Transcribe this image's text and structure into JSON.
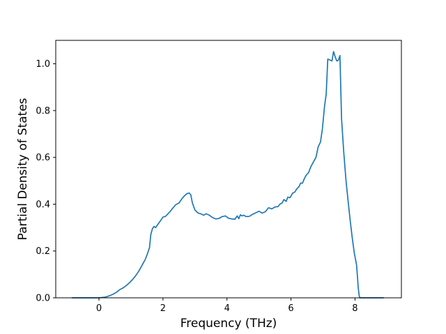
{
  "chart_data": {
    "type": "line",
    "title": "",
    "xlabel": "Frequency (THz)",
    "ylabel": "Partial Density of States",
    "xlim": [
      -1.35,
      9.45
    ],
    "ylim": [
      0.0,
      1.1
    ],
    "x_ticks": [
      0,
      2,
      4,
      6,
      8
    ],
    "x_tick_labels": [
      "0",
      "2",
      "4",
      "6",
      "8"
    ],
    "y_ticks": [
      0.0,
      0.2,
      0.4,
      0.6,
      0.8,
      1.0
    ],
    "y_tick_labels": [
      "0.0",
      "0.2",
      "0.4",
      "0.6",
      "0.8",
      "1.0"
    ],
    "grid": false,
    "legend": "none",
    "series": [
      {
        "color": "#1f77b4",
        "x": [
          -0.85,
          -0.5,
          0.0,
          0.2,
          0.35,
          0.45,
          0.55,
          0.65,
          0.75,
          0.85,
          0.95,
          1.05,
          1.15,
          1.25,
          1.35,
          1.45,
          1.52,
          1.58,
          1.62,
          1.67,
          1.72,
          1.77,
          1.82,
          1.9,
          2.0,
          2.08,
          2.15,
          2.22,
          2.3,
          2.4,
          2.5,
          2.6,
          2.68,
          2.75,
          2.82,
          2.87,
          2.92,
          3.0,
          3.1,
          3.2,
          3.27,
          3.35,
          3.45,
          3.55,
          3.65,
          3.75,
          3.85,
          3.95,
          4.05,
          4.15,
          4.25,
          4.32,
          4.37,
          4.42,
          4.47,
          4.52,
          4.6,
          4.7,
          4.8,
          4.9,
          5.0,
          5.1,
          5.2,
          5.3,
          5.4,
          5.5,
          5.6,
          5.65,
          5.72,
          5.78,
          5.85,
          5.9,
          5.97,
          6.05,
          6.12,
          6.18,
          6.25,
          6.3,
          6.36,
          6.42,
          6.48,
          6.55,
          6.62,
          6.7,
          6.78,
          6.85,
          6.92,
          6.98,
          7.05,
          7.1,
          7.15,
          7.22,
          7.28,
          7.33,
          7.38,
          7.43,
          7.48,
          7.53,
          7.58,
          7.65,
          7.72,
          7.78,
          7.85,
          7.92,
          7.98,
          8.05,
          8.08,
          8.1,
          8.13,
          8.15,
          8.3,
          8.6,
          8.9
        ],
        "y": [
          0.0,
          0.0,
          0.0,
          0.003,
          0.01,
          0.016,
          0.024,
          0.035,
          0.042,
          0.052,
          0.064,
          0.078,
          0.095,
          0.115,
          0.14,
          0.165,
          0.19,
          0.215,
          0.27,
          0.295,
          0.305,
          0.3,
          0.31,
          0.325,
          0.345,
          0.348,
          0.358,
          0.368,
          0.382,
          0.398,
          0.405,
          0.425,
          0.437,
          0.445,
          0.448,
          0.44,
          0.405,
          0.375,
          0.362,
          0.358,
          0.353,
          0.359,
          0.353,
          0.343,
          0.337,
          0.339,
          0.347,
          0.35,
          0.34,
          0.337,
          0.336,
          0.35,
          0.338,
          0.355,
          0.35,
          0.353,
          0.347,
          0.348,
          0.357,
          0.363,
          0.37,
          0.362,
          0.368,
          0.385,
          0.38,
          0.388,
          0.39,
          0.4,
          0.405,
          0.42,
          0.412,
          0.43,
          0.428,
          0.447,
          0.452,
          0.465,
          0.475,
          0.49,
          0.49,
          0.51,
          0.525,
          0.535,
          0.56,
          0.58,
          0.6,
          0.645,
          0.665,
          0.72,
          0.82,
          0.87,
          1.02,
          1.016,
          1.012,
          1.052,
          1.03,
          1.012,
          1.015,
          1.035,
          0.765,
          0.62,
          0.5,
          0.42,
          0.33,
          0.25,
          0.19,
          0.14,
          0.085,
          0.045,
          0.01,
          0.0,
          0.0,
          0.0,
          0.0
        ]
      }
    ]
  }
}
